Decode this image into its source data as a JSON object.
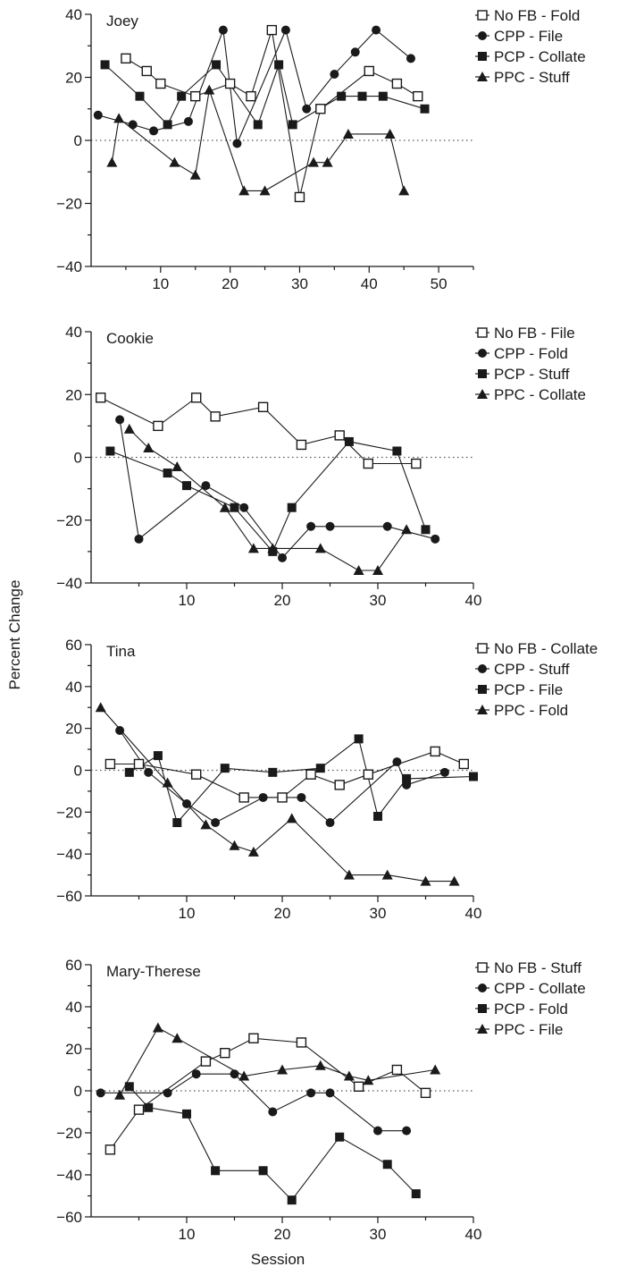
{
  "figure": {
    "xlabel": "Session",
    "ylabel": "Percent Change"
  },
  "colors": {
    "ink": "#1a1a1a",
    "hollow_fill": "#ffffff"
  },
  "chart_data": [
    {
      "type": "line",
      "participant": "Joey",
      "xlim": [
        0,
        55
      ],
      "ylim": [
        -40,
        40
      ],
      "x_ticks": [
        10,
        20,
        30,
        40,
        50
      ],
      "y_ticks": [
        -40,
        -20,
        0,
        20,
        40
      ],
      "y_tick_labels": [
        "−40",
        "−20",
        "0",
        "20",
        "40"
      ],
      "reference_line": 0,
      "legend_position": "top-right",
      "series": [
        {
          "name": "No FB - Fold",
          "marker": "open-square",
          "x": [
            5,
            8,
            10,
            15,
            20,
            23,
            26,
            30,
            33,
            40,
            44,
            47
          ],
          "y": [
            26,
            22,
            18,
            14,
            18,
            14,
            35,
            -18,
            10,
            22,
            18,
            14
          ]
        },
        {
          "name": "CPP - File",
          "marker": "filled-circle",
          "x": [
            1,
            6,
            9,
            14,
            19,
            21,
            28,
            31,
            35,
            38,
            41,
            46
          ],
          "y": [
            8,
            5,
            3,
            6,
            35,
            -1,
            35,
            10,
            21,
            28,
            35,
            26
          ]
        },
        {
          "name": "PCP - Collate",
          "marker": "filled-square",
          "x": [
            2,
            7,
            11,
            13,
            18,
            24,
            27,
            29,
            36,
            39,
            42,
            48
          ],
          "y": [
            24,
            14,
            5,
            14,
            24,
            5,
            24,
            5,
            14,
            14,
            14,
            10
          ]
        },
        {
          "name": "PPC - Stuff",
          "marker": "filled-triangle",
          "x": [
            3,
            4,
            12,
            15,
            17,
            22,
            25,
            32,
            34,
            37,
            43,
            45
          ],
          "y": [
            -7,
            7,
            -7,
            -11,
            16,
            -16,
            -16,
            -7,
            -7,
            2,
            2,
            -16
          ]
        }
      ]
    },
    {
      "type": "line",
      "participant": "Cookie",
      "xlim": [
        0,
        40
      ],
      "ylim": [
        -40,
        40
      ],
      "x_ticks": [
        10,
        20,
        30,
        40
      ],
      "y_ticks": [
        -40,
        -20,
        0,
        20,
        40
      ],
      "y_tick_labels": [
        "−40",
        "−20",
        "0",
        "20",
        "40"
      ],
      "reference_line": 0,
      "legend_position": "top-right",
      "series": [
        {
          "name": "No FB - File",
          "marker": "open-square",
          "x": [
            1,
            7,
            11,
            13,
            18,
            22,
            26,
            29,
            34
          ],
          "y": [
            19,
            10,
            19,
            13,
            16,
            4,
            7,
            -2,
            -2
          ]
        },
        {
          "name": "CPP - Fold",
          "marker": "filled-circle",
          "x": [
            3,
            5,
            12,
            16,
            20,
            23,
            25,
            31,
            36
          ],
          "y": [
            12,
            -26,
            -9,
            -16,
            -32,
            -22,
            -22,
            -22,
            -26
          ]
        },
        {
          "name": "PCP - Stuff",
          "marker": "filled-square",
          "x": [
            2,
            8,
            10,
            15,
            19,
            21,
            27,
            32,
            35
          ],
          "y": [
            2,
            -5,
            -9,
            -16,
            -30,
            -16,
            5,
            2,
            -23
          ]
        },
        {
          "name": "PPC - Collate",
          "marker": "filled-triangle",
          "x": [
            4,
            6,
            9,
            14,
            17,
            19,
            24,
            28,
            30,
            33
          ],
          "y": [
            9,
            3,
            -3,
            -16,
            -29,
            -29,
            -29,
            -36,
            -36,
            -23
          ]
        }
      ]
    },
    {
      "type": "line",
      "participant": "Tina",
      "xlim": [
        0,
        40
      ],
      "ylim": [
        -60,
        60
      ],
      "x_ticks": [
        10,
        20,
        30,
        40
      ],
      "y_ticks": [
        -60,
        -40,
        -20,
        0,
        20,
        40,
        60
      ],
      "y_tick_labels": [
        "−60",
        "−40",
        "−20",
        "0",
        "20",
        "40",
        "60"
      ],
      "reference_line": 0,
      "legend_position": "top-right",
      "series": [
        {
          "name": "No FB - Collate",
          "marker": "open-square",
          "x": [
            2,
            5,
            11,
            16,
            20,
            23,
            26,
            29,
            36,
            39
          ],
          "y": [
            3,
            3,
            -2,
            -13,
            -13,
            -2,
            -7,
            -2,
            9,
            3
          ]
        },
        {
          "name": "CPP - Stuff",
          "marker": "filled-circle",
          "x": [
            3,
            6,
            10,
            13,
            18,
            22,
            25,
            32,
            33,
            37
          ],
          "y": [
            19,
            -1,
            -16,
            -25,
            -13,
            -13,
            -25,
            4,
            -7,
            -1
          ]
        },
        {
          "name": "PCP - File",
          "marker": "filled-square",
          "x": [
            4,
            7,
            9,
            14,
            19,
            24,
            28,
            30,
            33,
            40
          ],
          "y": [
            -1,
            7,
            -25,
            1,
            -1,
            1,
            15,
            -22,
            -4,
            -3
          ]
        },
        {
          "name": "PPC - Fold",
          "marker": "filled-triangle",
          "x": [
            1,
            8,
            12,
            15,
            17,
            21,
            27,
            31,
            35,
            38
          ],
          "y": [
            30,
            -6,
            -26,
            -36,
            -39,
            -23,
            -50,
            -50,
            -53,
            -53
          ]
        }
      ]
    },
    {
      "type": "line",
      "participant": "Mary-Therese",
      "xlim": [
        0,
        40
      ],
      "ylim": [
        -60,
        60
      ],
      "x_ticks": [
        10,
        20,
        30,
        40
      ],
      "y_ticks": [
        -60,
        -40,
        -20,
        0,
        20,
        40,
        60
      ],
      "y_tick_labels": [
        "−60",
        "−40",
        "−20",
        "0",
        "20",
        "40",
        "60"
      ],
      "reference_line": 0,
      "legend_position": "top-right",
      "series": [
        {
          "name": "No FB - Stuff",
          "marker": "open-square",
          "x": [
            2,
            5,
            12,
            14,
            17,
            22,
            28,
            32,
            35
          ],
          "y": [
            -28,
            -9,
            14,
            18,
            25,
            23,
            2,
            10,
            -1
          ]
        },
        {
          "name": "CPP - Collate",
          "marker": "filled-circle",
          "x": [
            1,
            8,
            11,
            15,
            19,
            23,
            25,
            30,
            33
          ],
          "y": [
            -1,
            -1,
            8,
            8,
            -10,
            -1,
            -1,
            -19,
            -19
          ]
        },
        {
          "name": "PCP - Fold",
          "marker": "filled-square",
          "x": [
            4,
            6,
            10,
            13,
            18,
            21,
            26,
            31,
            34
          ],
          "y": [
            2,
            -8,
            -11,
            -38,
            -38,
            -52,
            -22,
            -35,
            -49
          ]
        },
        {
          "name": "PPC - File",
          "marker": "filled-triangle",
          "x": [
            3,
            7,
            9,
            16,
            20,
            24,
            27,
            29,
            36
          ],
          "y": [
            -2,
            30,
            25,
            7,
            10,
            12,
            7,
            5,
            10
          ]
        }
      ]
    }
  ]
}
